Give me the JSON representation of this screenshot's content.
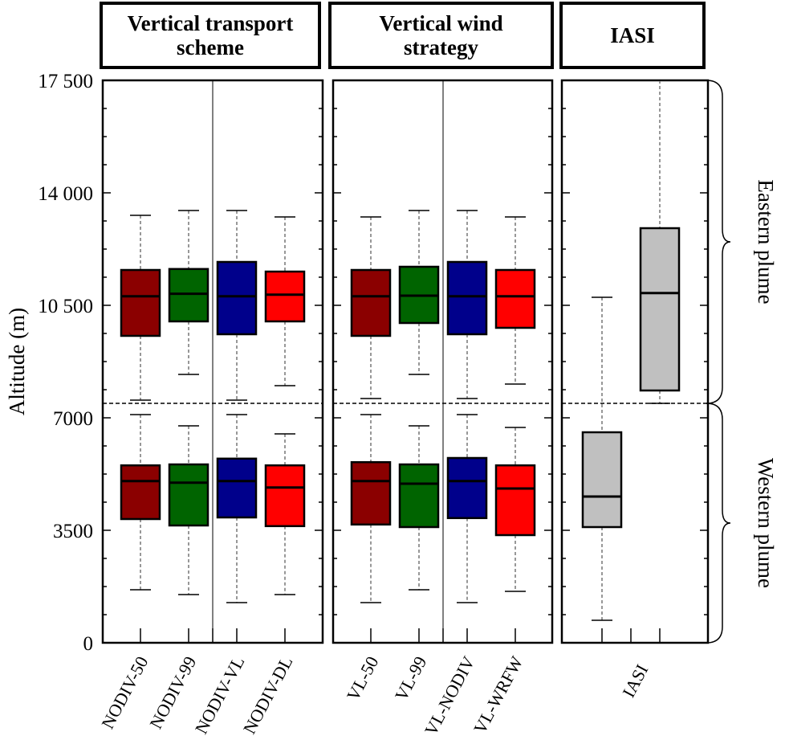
{
  "chart_data": {
    "type": "box",
    "ylabel": "Altitude (m)",
    "ylim": [
      0,
      17500
    ],
    "yticks": [
      "0",
      "3500",
      "7000",
      "10 500",
      "14 000",
      "17 500"
    ],
    "ytick_values": [
      0,
      3500,
      7000,
      10500,
      14000,
      17500
    ],
    "separator_altitude": 7450,
    "grid": false,
    "region_labels": [
      {
        "label": "Eastern plume",
        "from": 7450,
        "to": 17500
      },
      {
        "label": "Western plume",
        "from": 0,
        "to": 7450
      }
    ],
    "panels": [
      {
        "title": "Vertical transport scheme",
        "categories": [
          "NODIV-50",
          "NODIV-99",
          "NODIV-VL",
          "NODIV-DL"
        ],
        "colors": [
          "#8b0000",
          "#006400",
          "#00008b",
          "#ff0000"
        ],
        "divider_after_index": 1,
        "eastern": [
          {
            "min": 7550,
            "q1": 9550,
            "median": 10780,
            "q3": 11600,
            "max": 13300
          },
          {
            "min": 8350,
            "q1": 10000,
            "median": 10860,
            "q3": 11630,
            "max": 13450
          },
          {
            "min": 7550,
            "q1": 9600,
            "median": 10780,
            "q3": 11850,
            "max": 13450
          },
          {
            "min": 8000,
            "q1": 10000,
            "median": 10830,
            "q3": 11550,
            "max": 13250
          }
        ],
        "western": [
          {
            "min": 1650,
            "q1": 3850,
            "median": 5030,
            "q3": 5520,
            "max": 7100
          },
          {
            "min": 1500,
            "q1": 3650,
            "median": 4980,
            "q3": 5550,
            "max": 6750
          },
          {
            "min": 1250,
            "q1": 3900,
            "median": 5030,
            "q3": 5730,
            "max": 7100
          },
          {
            "min": 1500,
            "q1": 3630,
            "median": 4830,
            "q3": 5520,
            "max": 6500
          }
        ]
      },
      {
        "title": "Vertical wind strategy",
        "categories": [
          "VL-50",
          "VL-99",
          "VL-NODIV",
          "VL-WRFW"
        ],
        "colors": [
          "#8b0000",
          "#006400",
          "#00008b",
          "#ff0000"
        ],
        "divider_after_index": 1,
        "eastern": [
          {
            "min": 7600,
            "q1": 9550,
            "median": 10780,
            "q3": 11600,
            "max": 13250
          },
          {
            "min": 8350,
            "q1": 9950,
            "median": 10800,
            "q3": 11700,
            "max": 13450
          },
          {
            "min": 7600,
            "q1": 9600,
            "median": 10780,
            "q3": 11850,
            "max": 13450
          },
          {
            "min": 8050,
            "q1": 9800,
            "median": 10780,
            "q3": 11600,
            "max": 13250
          }
        ],
        "western": [
          {
            "min": 1250,
            "q1": 3680,
            "median": 5030,
            "q3": 5620,
            "max": 7100
          },
          {
            "min": 1650,
            "q1": 3600,
            "median": 4950,
            "q3": 5550,
            "max": 6750
          },
          {
            "min": 1250,
            "q1": 3880,
            "median": 5030,
            "q3": 5750,
            "max": 7100
          },
          {
            "min": 1600,
            "q1": 3350,
            "median": 4800,
            "q3": 5520,
            "max": 6700
          }
        ]
      },
      {
        "title": "IASI",
        "categories": [
          "IASI"
        ],
        "colors": [
          "#c0c0c0"
        ],
        "divider_after_index": null,
        "eastern": [
          {
            "min": 7450,
            "q1": 7850,
            "median": 10880,
            "q3": 12900,
            "max": 17500
          }
        ],
        "western": [
          {
            "min": 700,
            "q1": 3600,
            "median": 4550,
            "q3": 6550,
            "max": 10750
          }
        ]
      }
    ]
  }
}
